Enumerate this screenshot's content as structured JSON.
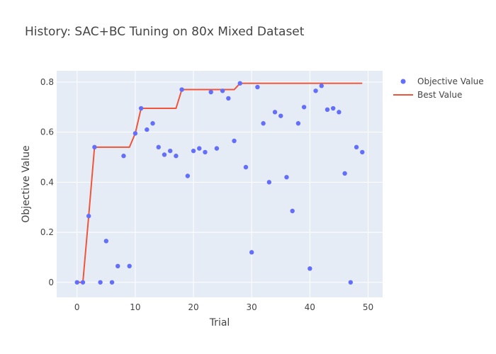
{
  "chart_data": {
    "type": "scatter",
    "title": "History: SAC+BC Tuning on 80x Mixed Dataset",
    "xlabel": "Trial",
    "ylabel": "Objective Value",
    "xlim": [
      -3.5,
      52.5
    ],
    "ylim": [
      -0.06,
      0.845
    ],
    "xticks": [
      0,
      10,
      20,
      30,
      40,
      50
    ],
    "yticks": [
      0,
      0.2,
      0.4,
      0.6,
      0.8
    ],
    "grid": true,
    "legend_position": "top-right",
    "colors": {
      "plot_bg": "#e5ecf6",
      "grid": "#ffffff",
      "objective": "#636efa",
      "best": "#ef553b",
      "text": "#444444"
    },
    "series": [
      {
        "name": "Objective Value",
        "mode": "markers",
        "x": [
          0,
          1,
          2,
          3,
          4,
          5,
          6,
          7,
          8,
          9,
          10,
          11,
          12,
          13,
          14,
          15,
          16,
          17,
          18,
          19,
          20,
          21,
          22,
          23,
          24,
          25,
          26,
          27,
          28,
          29,
          30,
          31,
          32,
          33,
          34,
          35,
          36,
          37,
          38,
          39,
          40,
          41,
          42,
          43,
          44,
          45,
          46,
          47,
          48,
          49
        ],
        "y": [
          0.0,
          0.0,
          0.265,
          0.54,
          0.0,
          0.165,
          0.0,
          0.065,
          0.505,
          0.065,
          0.595,
          0.695,
          0.61,
          0.635,
          0.54,
          0.51,
          0.525,
          0.505,
          0.77,
          0.425,
          0.525,
          0.535,
          0.52,
          0.76,
          0.535,
          0.765,
          0.735,
          0.565,
          0.795,
          0.46,
          0.12,
          0.78,
          0.635,
          0.4,
          0.68,
          0.665,
          0.42,
          0.285,
          0.635,
          0.7,
          0.055,
          0.765,
          0.785,
          0.69,
          0.695,
          0.68,
          0.435,
          0.0,
          0.54,
          0.52
        ]
      },
      {
        "name": "Best Value",
        "mode": "line",
        "x": [
          0,
          1,
          2,
          3,
          4,
          5,
          6,
          7,
          8,
          9,
          10,
          11,
          12,
          13,
          14,
          15,
          16,
          17,
          18,
          19,
          20,
          21,
          22,
          23,
          24,
          25,
          26,
          27,
          28,
          29,
          30,
          31,
          32,
          33,
          34,
          35,
          36,
          37,
          38,
          39,
          40,
          41,
          42,
          43,
          44,
          45,
          46,
          47,
          48,
          49
        ],
        "y": [
          0.0,
          0.0,
          0.265,
          0.54,
          0.54,
          0.54,
          0.54,
          0.54,
          0.54,
          0.54,
          0.595,
          0.695,
          0.695,
          0.695,
          0.695,
          0.695,
          0.695,
          0.695,
          0.77,
          0.77,
          0.77,
          0.77,
          0.77,
          0.77,
          0.77,
          0.77,
          0.77,
          0.77,
          0.795,
          0.795,
          0.795,
          0.795,
          0.795,
          0.795,
          0.795,
          0.795,
          0.795,
          0.795,
          0.795,
          0.795,
          0.795,
          0.795,
          0.795,
          0.795,
          0.795,
          0.795,
          0.795,
          0.795,
          0.795,
          0.795
        ]
      }
    ]
  }
}
